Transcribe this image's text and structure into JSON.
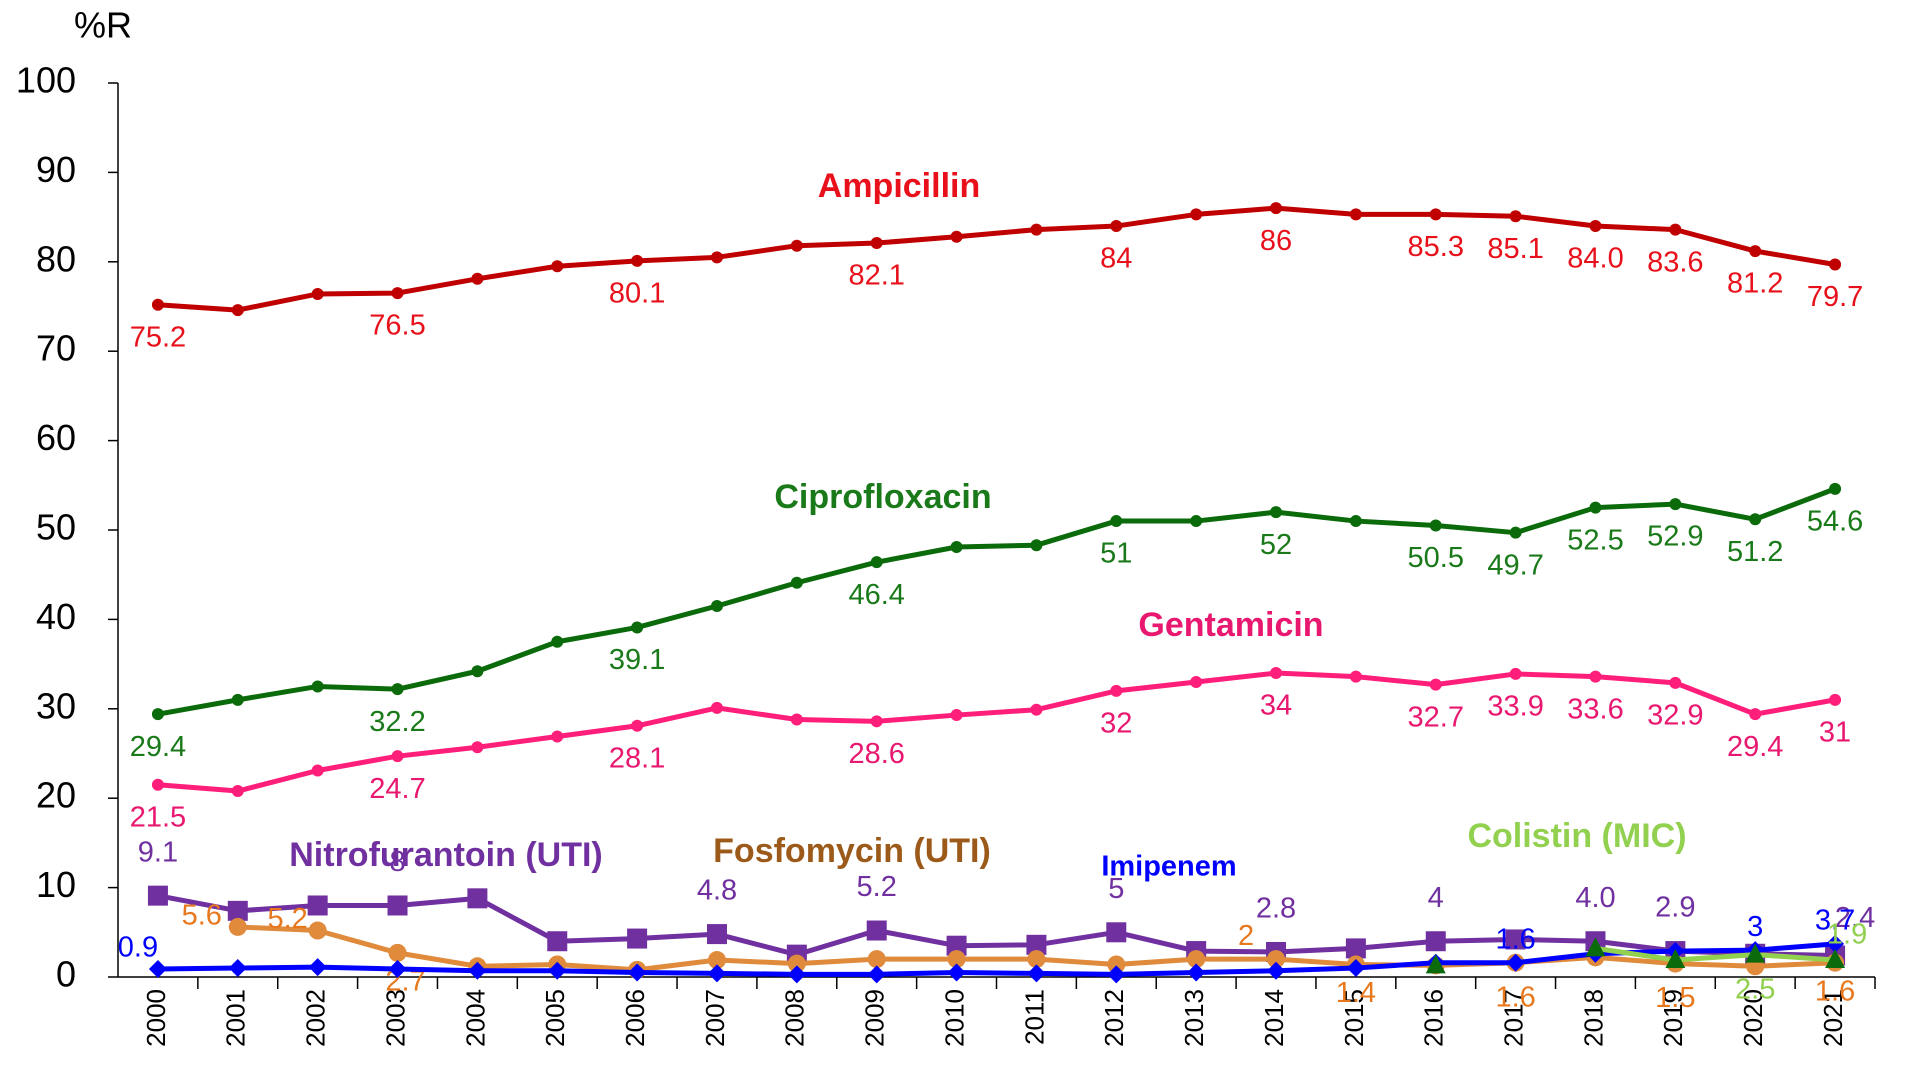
{
  "chart_data": {
    "type": "line",
    "title": "%R",
    "categories": [
      "2000",
      "2001",
      "2002",
      "2003",
      "2004",
      "2005",
      "2006",
      "2007",
      "2008",
      "2009",
      "2010",
      "2011",
      "2012",
      "2013",
      "2014",
      "2015",
      "2016",
      "2017",
      "2018",
      "2019",
      "2020",
      "2021"
    ],
    "ylim": [
      0,
      100
    ],
    "yticks": [
      0,
      10,
      20,
      30,
      40,
      50,
      60,
      70,
      80,
      90,
      100
    ],
    "grid": false,
    "series": [
      {
        "name": "Ampicillin",
        "color": "#c00000",
        "label_color": "#e8101a",
        "marker": "circle",
        "values": [
          75.2,
          74.6,
          76.4,
          76.5,
          78.1,
          79.5,
          80.1,
          80.5,
          81.8,
          82.1,
          82.8,
          83.6,
          84,
          85.3,
          86,
          85.3,
          85.3,
          85.1,
          84.0,
          83.6,
          81.2,
          79.7
        ],
        "value_labels": [
          "75.2",
          null,
          null,
          "76.5",
          null,
          null,
          "80.1",
          null,
          null,
          "82.1",
          null,
          null,
          "84",
          null,
          "86",
          null,
          "85.3",
          "85.1",
          "84.0",
          "83.6",
          "81.2",
          "79.7"
        ]
      },
      {
        "name": "Ciprofloxacin",
        "color": "#0b6b0b",
        "label_color": "#1a7a1a",
        "marker": "circle",
        "values": [
          29.4,
          31.0,
          32.5,
          32.2,
          34.2,
          37.5,
          39.1,
          41.5,
          44.1,
          46.4,
          48.1,
          48.3,
          51,
          51.0,
          52,
          51.0,
          50.5,
          49.7,
          52.5,
          52.9,
          51.2,
          54.6
        ],
        "value_labels": [
          "29.4",
          null,
          null,
          "32.2",
          null,
          null,
          "39.1",
          null,
          null,
          "46.4",
          null,
          null,
          "51",
          null,
          "52",
          null,
          "50.5",
          "49.7",
          "52.5",
          "52.9",
          "51.2",
          "54.6"
        ]
      },
      {
        "name": "Gentamicin",
        "color": "#ff1f7a",
        "label_color": "#e8176f",
        "marker": "circle",
        "values": [
          21.5,
          20.8,
          23.1,
          24.7,
          25.7,
          26.9,
          28.1,
          30.1,
          28.8,
          28.6,
          29.3,
          29.9,
          32,
          33.0,
          34,
          33.6,
          32.7,
          33.9,
          33.6,
          32.9,
          29.4,
          31
        ],
        "value_labels": [
          "21.5",
          null,
          null,
          "24.7",
          null,
          null,
          "28.1",
          null,
          null,
          "28.6",
          null,
          null,
          "32",
          null,
          "34",
          null,
          "32.7",
          "33.9",
          "33.6",
          "32.9",
          "29.4",
          "31"
        ]
      },
      {
        "name": "Nitrofurantoin (UTI)",
        "color": "#7030a0",
        "label_color": "#7030a0",
        "marker": "square",
        "values": [
          9.1,
          7.4,
          8.0,
          8,
          8.8,
          4.0,
          4.3,
          4.8,
          2.5,
          5.2,
          3.5,
          3.6,
          5,
          2.9,
          2.8,
          3.2,
          4,
          4.2,
          4.0,
          2.9,
          2.6,
          2.4
        ],
        "value_labels": [
          "9.1",
          null,
          null,
          "8",
          null,
          null,
          null,
          "4.8",
          null,
          "5.2",
          null,
          null,
          "5",
          null,
          "2.8",
          null,
          "4",
          null,
          "4.0",
          "2.9",
          null,
          "2.4"
        ]
      },
      {
        "name": "Fosfomycin (UTI)",
        "color": "#e08a3c",
        "label_color": "#e8781e",
        "name_color": "#9c5a1a",
        "marker": "circle",
        "values": [
          null,
          5.6,
          5.2,
          2.7,
          1.2,
          1.4,
          0.8,
          1.9,
          1.5,
          2.0,
          2.0,
          2.0,
          1.4,
          2.0,
          2,
          1.4,
          1.3,
          1.6,
          2.2,
          1.5,
          1.2,
          1.6
        ],
        "value_labels": [
          null,
          "5.6",
          "5.2",
          "2.7",
          null,
          null,
          null,
          null,
          null,
          null,
          null,
          null,
          null,
          null,
          "2",
          "1.4",
          null,
          "1.6",
          null,
          "1.5",
          null,
          "1.6"
        ]
      },
      {
        "name": "Imipenem",
        "color": "#0000ff",
        "label_color": "#0000ff",
        "marker": "diamond",
        "values": [
          0.9,
          1.0,
          1.1,
          0.9,
          0.7,
          0.7,
          0.5,
          0.4,
          0.3,
          0.3,
          0.5,
          0.4,
          0.3,
          0.5,
          0.7,
          1.0,
          1.6,
          1.6,
          2.6,
          2.9,
          3,
          3.7
        ],
        "value_labels": [
          "0.9",
          null,
          null,
          null,
          null,
          null,
          null,
          null,
          null,
          null,
          null,
          null,
          null,
          null,
          null,
          null,
          null,
          "1.6",
          null,
          null,
          "3",
          "3.7"
        ]
      },
      {
        "name": "Colistin (MIC)",
        "color": "#92d050",
        "label_color": "#92d050",
        "marker_color": "#0b6b0b",
        "marker": "triangle",
        "values": [
          null,
          null,
          null,
          null,
          null,
          null,
          null,
          null,
          null,
          null,
          null,
          null,
          null,
          null,
          null,
          null,
          1.3,
          null,
          3.2,
          1.9,
          2.5,
          1.9
        ],
        "value_labels": [
          null,
          null,
          null,
          null,
          null,
          null,
          null,
          null,
          null,
          null,
          null,
          null,
          null,
          null,
          null,
          null,
          null,
          null,
          null,
          null,
          "2.5",
          "1.9"
        ]
      }
    ]
  }
}
